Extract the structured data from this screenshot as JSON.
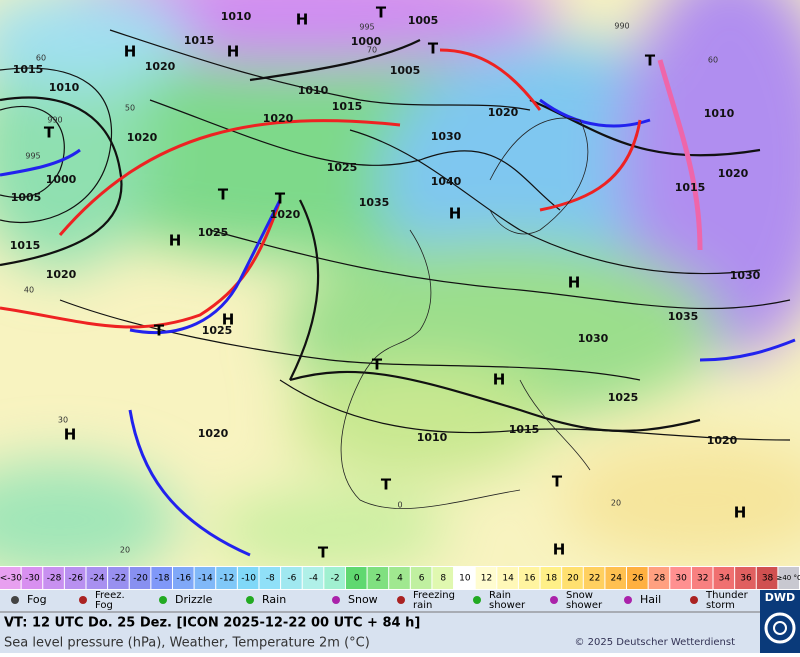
{
  "map": {
    "labels": [
      "1010",
      "1015",
      "1020",
      "1015",
      "1010",
      "990",
      "1000",
      "995",
      "1005",
      "1015",
      "1020",
      "1020",
      "1010",
      "1015",
      "1020",
      "995",
      "1000",
      "1005",
      "1005",
      "990",
      "1020",
      "1030",
      "1040",
      "1035",
      "1025",
      "1020",
      "1025",
      "1025",
      "1020",
      "1015",
      "1010",
      "1020",
      "1030",
      "1035",
      "1030",
      "1025",
      "1015",
      "1010",
      "1020",
      "H",
      "T",
      "H",
      "H",
      "T",
      "T",
      "T",
      "H",
      "T",
      "H",
      "H",
      "T",
      "H",
      "T",
      "H",
      "H",
      "T",
      "T",
      "H",
      "T",
      "H",
      "T",
      "60",
      "50",
      "40",
      "30",
      "20",
      "70",
      "60",
      "20",
      "0"
    ]
  },
  "color_scale": [
    "<-30",
    "-30",
    "-28",
    "-26",
    "-24",
    "-22",
    "-20",
    "-18",
    "-16",
    "-14",
    "-12",
    "-10",
    "-8",
    "-6",
    "-4",
    "-2",
    "0",
    "2",
    "4",
    "6",
    "8",
    "10",
    "12",
    "14",
    "16",
    "18",
    "20",
    "22",
    "24",
    "26",
    "28",
    "30",
    "32",
    "34",
    "36",
    "38",
    "≥40 °C"
  ],
  "legend": {
    "items": [
      [
        "Fog"
      ],
      [
        "Freez.",
        "Fog"
      ],
      [
        "Drizzle"
      ],
      [
        "Rain"
      ],
      [
        "Snow"
      ],
      [
        "Freezing",
        "rain"
      ],
      [
        "Rain",
        "shower"
      ],
      [
        "Snow",
        "shower"
      ],
      [
        "Hail"
      ],
      [
        "Thunder",
        "storm"
      ]
    ]
  },
  "footer": {
    "valid_time": "VT: 12 UTC Do.  25 Dez. [ICON 2025-12-22  00 UTC + 84 h]",
    "subtitle": "Sea level pressure (hPa), Weather, Temperature 2m (°C)",
    "copyright": "© 2025 Deutscher Wetterdienst",
    "logo": "DWD"
  }
}
